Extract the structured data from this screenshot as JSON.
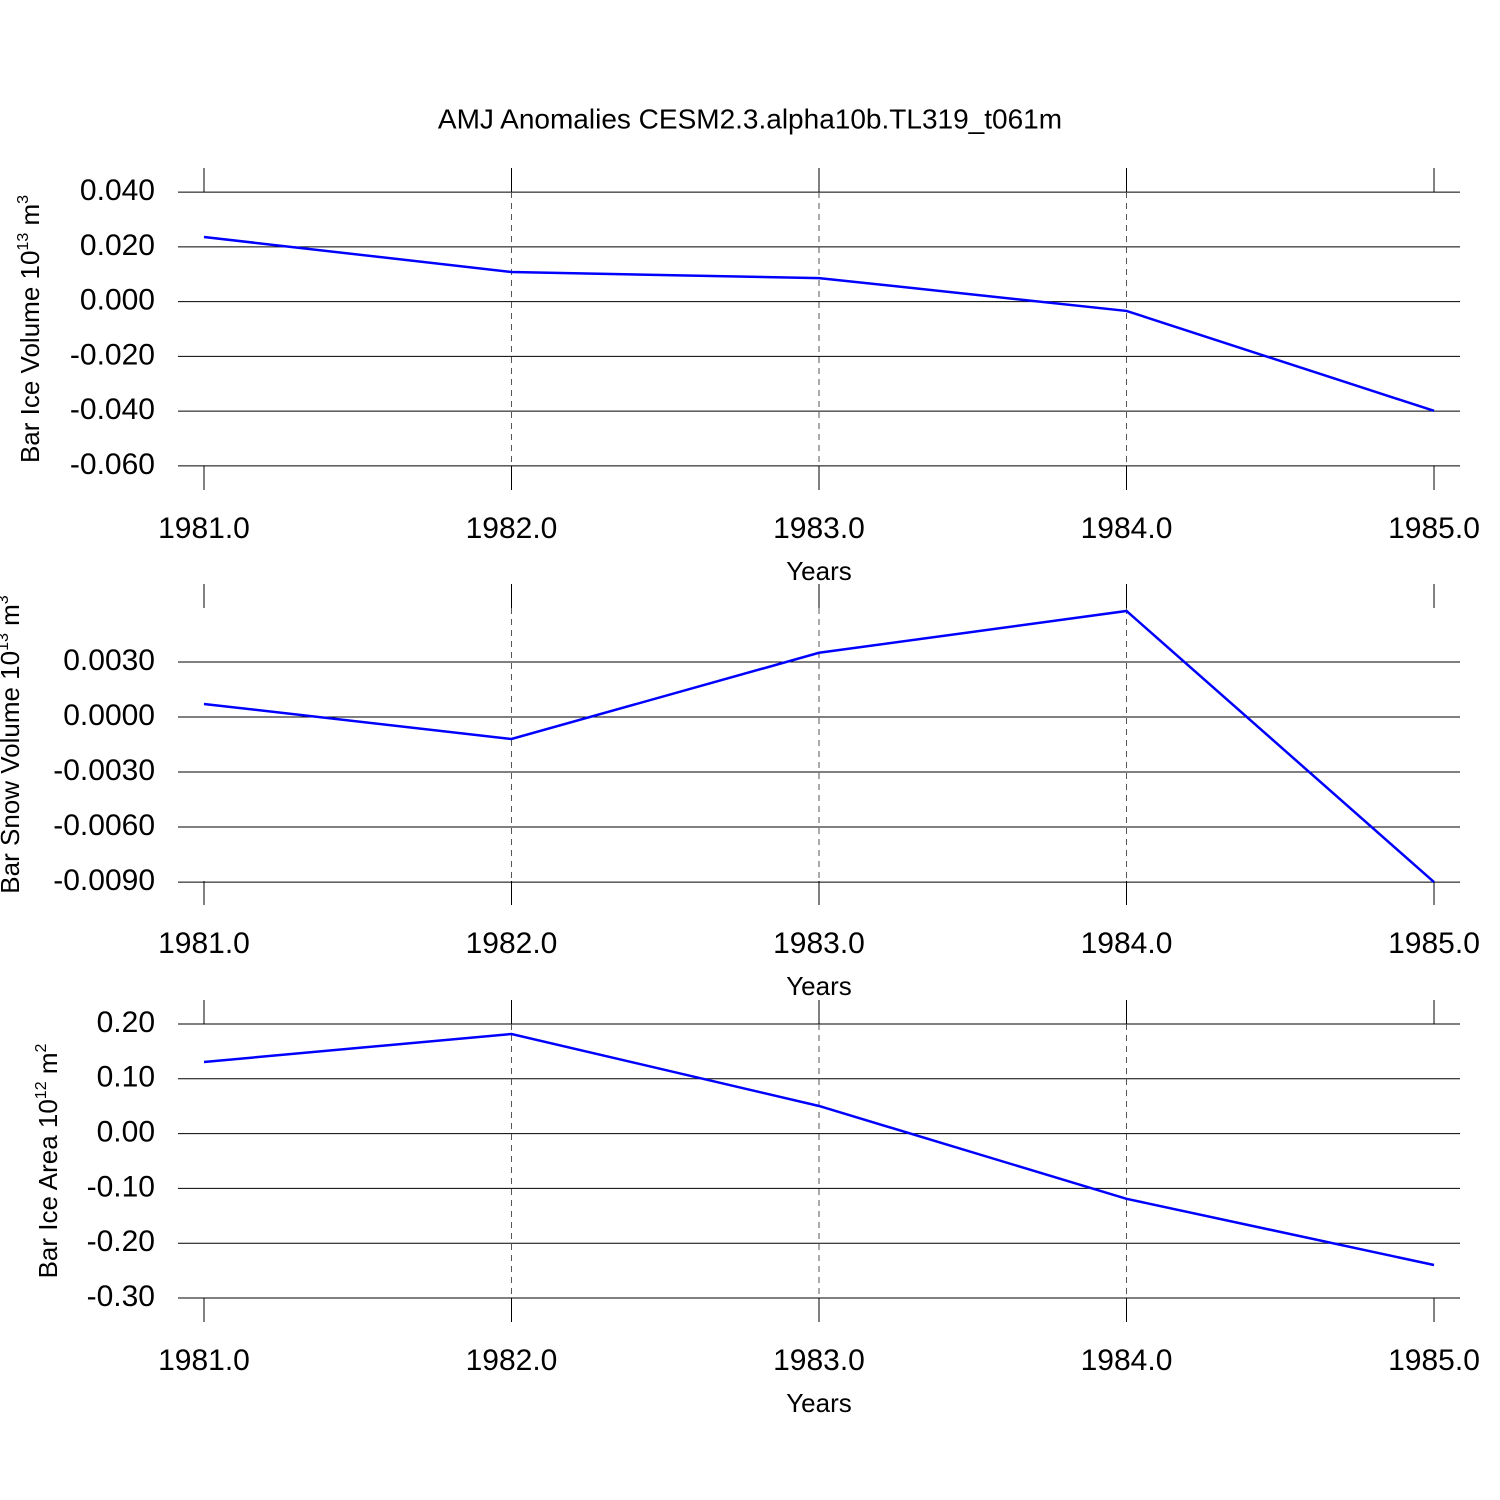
{
  "chart_data": [
    {
      "type": "line",
      "title": "AMJ Anomalies CESM2.3.alpha10b.TL319_t061m",
      "ylabel": [
        "Bar Ice Volume 10",
        "13",
        " m",
        "3"
      ],
      "xlabel": "Years",
      "x": [
        1981,
        1982,
        1983,
        1984,
        1985
      ],
      "series": [
        {
          "color": "#0000ff",
          "values": [
            0.0236,
            0.0108,
            0.0086,
            -0.0034,
            -0.0399
          ]
        }
      ],
      "xlim": [
        1980.9155,
        1985.0845
      ],
      "xticks": [
        {
          "value": 1981,
          "label": "1981.0"
        },
        {
          "value": 1982,
          "label": "1982.0"
        },
        {
          "value": 1983,
          "label": "1983.0"
        },
        {
          "value": 1984,
          "label": "1984.0"
        },
        {
          "value": 1985,
          "label": "1985.0"
        }
      ],
      "ylim": [
        -0.0688,
        0.0488
      ],
      "yticks": [
        {
          "value": -0.06,
          "label": "-0.060"
        },
        {
          "value": -0.04,
          "label": "-0.040"
        },
        {
          "value": -0.02,
          "label": "-0.020"
        },
        {
          "value": 0,
          "label": "0.000"
        },
        {
          "value": 0.02,
          "label": "0.020"
        },
        {
          "value": 0.04,
          "label": "0.040"
        }
      ],
      "grid": true
    },
    {
      "type": "line",
      "ylabel": [
        "Bar Snow Volume 10",
        "13",
        " m",
        "3"
      ],
      "xlabel": "Years",
      "x": [
        1981,
        1982,
        1983,
        1984,
        1985
      ],
      "series": [
        {
          "color": "#0000ff",
          "values": [
            0.00071,
            -0.0012,
            0.0035,
            0.00578,
            -0.009
          ]
        }
      ],
      "xlim": [
        1980.9155,
        1985.0845
      ],
      "xticks": [
        {
          "value": 1981,
          "label": "1981.0"
        },
        {
          "value": 1982,
          "label": "1982.0"
        },
        {
          "value": 1983,
          "label": "1983.0"
        },
        {
          "value": 1984,
          "label": "1984.0"
        },
        {
          "value": 1985,
          "label": "1985.0"
        }
      ],
      "ylim": [
        -0.01025,
        0.00725
      ],
      "yticks": [
        {
          "value": -0.009,
          "label": "-0.0090"
        },
        {
          "value": -0.006,
          "label": "-0.0060"
        },
        {
          "value": -0.003,
          "label": "-0.0030"
        },
        {
          "value": 0,
          "label": "0.0000"
        },
        {
          "value": 0.003,
          "label": "0.0030"
        }
      ],
      "grid": true
    },
    {
      "type": "line",
      "ylabel": [
        "Bar Ice Area 10",
        "12",
        " m",
        "2"
      ],
      "xlabel": "Years",
      "x": [
        1981,
        1982,
        1983,
        1984,
        1985
      ],
      "series": [
        {
          "color": "#0000ff",
          "values": [
            0.1307,
            0.1818,
            0.0504,
            -0.119,
            -0.2398
          ]
        }
      ],
      "xlim": [
        1980.9155,
        1985.0845
      ],
      "xticks": [
        {
          "value": 1981,
          "label": "1981.0"
        },
        {
          "value": 1982,
          "label": "1982.0"
        },
        {
          "value": 1983,
          "label": "1983.0"
        },
        {
          "value": 1984,
          "label": "1984.0"
        },
        {
          "value": 1985,
          "label": "1985.0"
        }
      ],
      "ylim": [
        -0.3438,
        0.2438
      ],
      "yticks": [
        {
          "value": -0.3,
          "label": "-0.30"
        },
        {
          "value": -0.2,
          "label": "-0.20"
        },
        {
          "value": -0.1,
          "label": "-0.10"
        },
        {
          "value": 0,
          "label": "0.00"
        },
        {
          "value": 0.1,
          "label": "0.10"
        },
        {
          "value": 0.2,
          "label": "0.20"
        }
      ],
      "grid": true
    }
  ]
}
